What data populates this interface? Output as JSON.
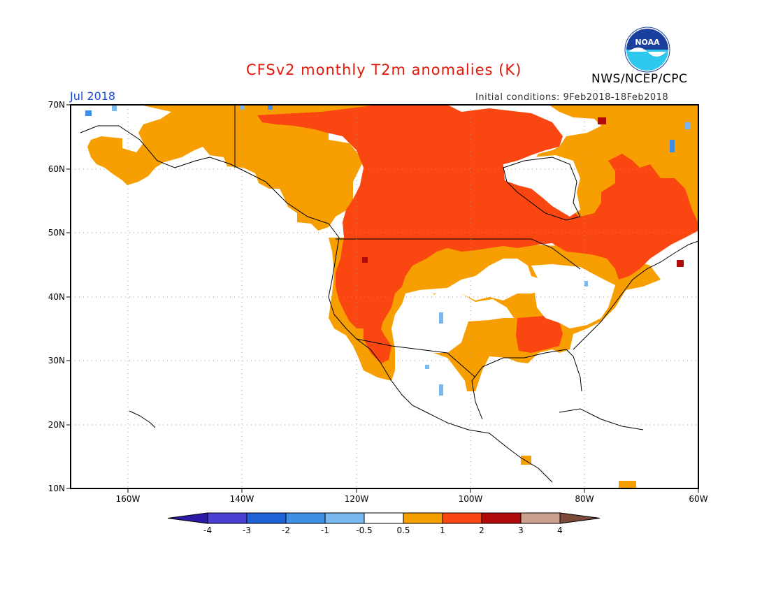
{
  "header": {
    "title": "CFSv2 monthly T2m anomalies (K)",
    "month": "Jul 2018",
    "agency": "NWS/NCEP/CPC",
    "initial_conditions": "Initial conditions: 9Feb2018-18Feb2018",
    "logo_text": "NOAA"
  },
  "axes": {
    "lat_ticks": [
      "70N",
      "60N",
      "50N",
      "40N",
      "30N",
      "20N",
      "10N"
    ],
    "lon_ticks": [
      "160W",
      "140W",
      "120W",
      "100W",
      "80W",
      "60W"
    ]
  },
  "colorbar": {
    "labels": [
      "-4",
      "-3",
      "-2",
      "-1",
      "-0.5",
      "0.5",
      "1",
      "2",
      "3",
      "4"
    ],
    "colors": [
      "#2a1aa6",
      "#4a3fd0",
      "#1f62d6",
      "#3f8fe6",
      "#79b7ef",
      "#ffffff",
      "#f79f00",
      "#fa4610",
      "#b10a0a",
      "#c9a08e",
      "#7b4a3a"
    ]
  },
  "legend_colors": {
    "positive_05_1": "#f79f00",
    "positive_1_2": "#fa4610",
    "positive_2_3": "#b10a0a",
    "negative_05_1": "#79b7ef",
    "negative_1_2": "#3f8fe6"
  }
}
